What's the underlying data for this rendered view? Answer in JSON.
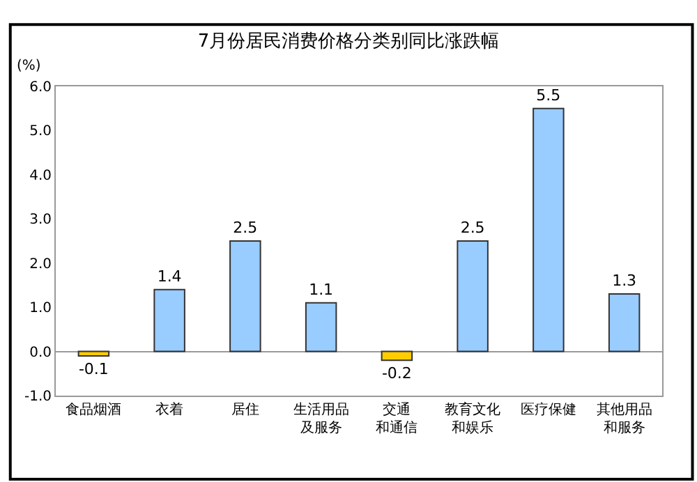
{
  "chart_data": {
    "type": "bar",
    "title": "7月份居民消费价格分类别同比涨跌幅",
    "ylabel": "(%)",
    "categories": [
      "食品烟酒",
      "衣着",
      "居住",
      "生活用品及服务",
      "交通和通信",
      "教育文化和娱乐",
      "医疗保健",
      "其他用品和服务"
    ],
    "values": [
      -0.1,
      1.4,
      2.5,
      1.1,
      -0.2,
      2.5,
      5.5,
      1.3
    ],
    "colors": [
      "#ffcc00",
      "#99ccff",
      "#99ccff",
      "#99ccff",
      "#ffcc00",
      "#99ccff",
      "#99ccff",
      "#99ccff"
    ],
    "data_labels": true,
    "ylim": [
      -1,
      6
    ],
    "yticks": [
      {
        "value": -1,
        "label": "-1.0"
      },
      {
        "value": 0,
        "label": "0.0"
      },
      {
        "value": 1,
        "label": "1.0"
      },
      {
        "value": 2,
        "label": "2.0"
      },
      {
        "value": 3,
        "label": "3.0"
      },
      {
        "value": 4,
        "label": "4.0"
      },
      {
        "value": 5,
        "label": "5.0"
      },
      {
        "value": 6,
        "label": "6.0"
      }
    ],
    "legend": false
  }
}
